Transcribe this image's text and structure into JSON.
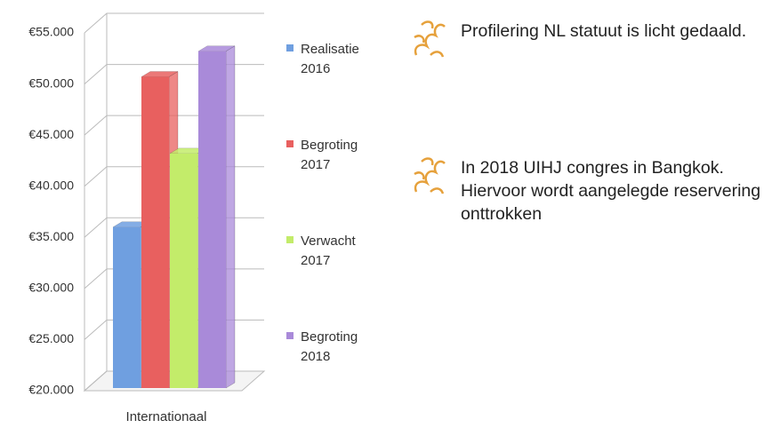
{
  "chart_data": {
    "type": "bar",
    "categories": [
      "Internationaal"
    ],
    "series": [
      {
        "name": "Realisatie 2016",
        "color": "#6f9fe0",
        "values": [
          36000
        ]
      },
      {
        "name": "Begroting 2017",
        "color": "#e8605f",
        "values": [
          50700
        ]
      },
      {
        "name": "Verwacht 2017",
        "color": "#c3ec6a",
        "values": [
          43200
        ]
      },
      {
        "name": "Begroting 2018",
        "color": "#a98ad9",
        "values": [
          53200
        ]
      }
    ],
    "ylim": [
      20000,
      55000
    ],
    "yticks": [
      {
        "value": 20000,
        "label": "€20.000"
      },
      {
        "value": 25000,
        "label": "€25.000"
      },
      {
        "value": 30000,
        "label": "€30.000"
      },
      {
        "value": 35000,
        "label": "€35.000"
      },
      {
        "value": 40000,
        "label": "€40.000"
      },
      {
        "value": 45000,
        "label": "€45.000"
      },
      {
        "value": 50000,
        "label": "€50.000"
      },
      {
        "value": 55000,
        "label": "€55.000"
      }
    ],
    "grid": true
  },
  "notes": [
    "Profilering NL statuut is licht gedaald.",
    "In 2018 UIHJ congres in Bangkok. Hiervoor wordt aangelegde reservering onttrokken"
  ]
}
